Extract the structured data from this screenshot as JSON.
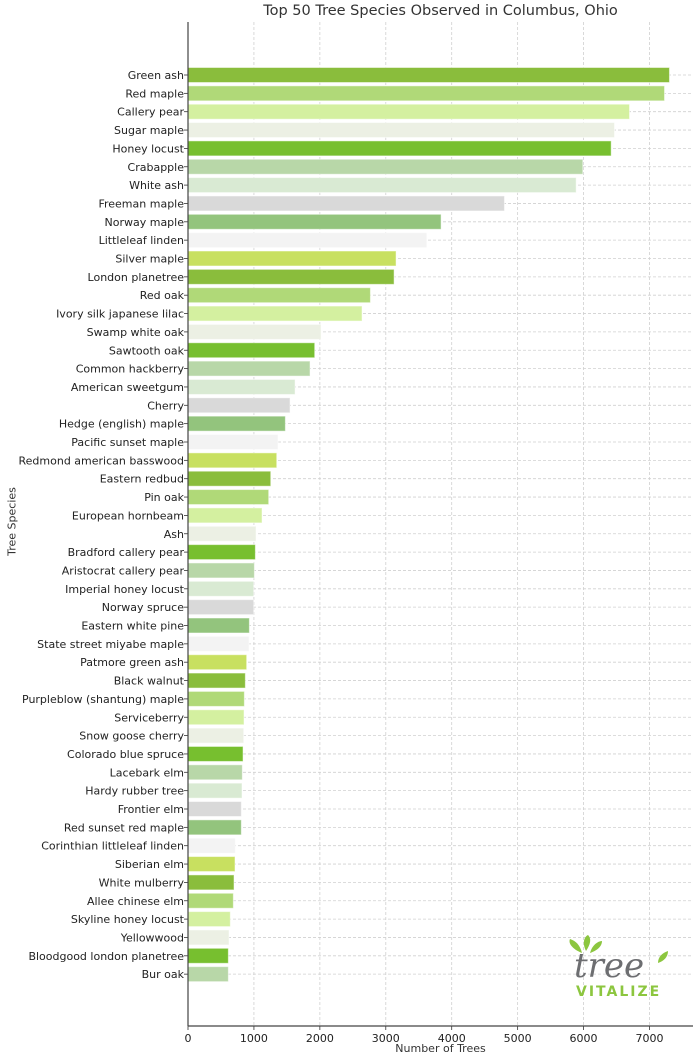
{
  "chart_data": {
    "type": "bar",
    "orientation": "horizontal",
    "title": "Top 50 Tree Species Observed in Columbus, Ohio",
    "xlabel": "Number of Trees",
    "ylabel": "Tree Species",
    "xlim": [
      0,
      7660
    ],
    "xticks": [
      0,
      1000,
      2000,
      3000,
      4000,
      5000,
      6000,
      7000
    ],
    "grid": true,
    "palette": [
      "#8abd3c",
      "#b0d978",
      "#d4f0a0",
      "#ecf0e4",
      "#77bf2f",
      "#b8d7a8",
      "#d9ead3",
      "#d9d9d9",
      "#93c47d",
      "#f3f3f3",
      "#c8e060"
    ],
    "categories": [
      "Green ash",
      "Red maple",
      "Callery pear",
      "Sugar maple",
      "Honey locust",
      "Crabapple",
      "White ash",
      "Freeman maple",
      "Norway maple",
      "Littleleaf linden",
      "Silver maple",
      "London planetree",
      "Red oak",
      "Ivory silk japanese lilac",
      "Swamp white oak",
      "Sawtooth oak",
      "Common hackberry",
      "American sweetgum",
      "Cherry",
      "Hedge (english) maple",
      "Pacific sunset maple",
      "Redmond american basswood",
      "Eastern redbud",
      "Pin oak",
      "European hornbeam",
      "Ash",
      "Bradford callery pear",
      "Aristocrat callery pear",
      "Imperial honey locust",
      "Norway spruce",
      "Eastern white pine",
      "State street miyabe maple",
      "Patmore green ash",
      "Black walnut",
      "Purpleblow (shantung) maple",
      "Serviceberry",
      "Snow goose cherry",
      "Colorado blue spruce",
      "Lacebark elm",
      "Hardy rubber tree",
      "Frontier elm",
      "Red sunset red maple",
      "Corinthian littleleaf linden",
      "Siberian elm",
      "White mulberry",
      "Allee chinese elm",
      "Skyline honey locust",
      "Yellowwood",
      "Bloodgood london planetree",
      "Bur oak"
    ],
    "values": [
      7303,
      7228,
      6697,
      6469,
      6419,
      5989,
      5888,
      4800,
      3839,
      3622,
      3156,
      3126,
      2767,
      2640,
      2018,
      1922,
      1851,
      1624,
      1548,
      1477,
      1366,
      1346,
      1255,
      1224,
      1123,
      1032,
      1022,
      1007,
      997,
      997,
      931,
      926,
      890,
      870,
      855,
      850,
      845,
      835,
      824,
      819,
      809,
      809,
      718,
      713,
      698,
      688,
      642,
      622,
      612,
      612
    ]
  },
  "logo": {
    "word": "tree",
    "sub": "VITALIZE"
  }
}
